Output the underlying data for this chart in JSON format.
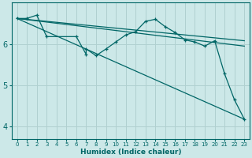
{
  "background_color": "#cce8e8",
  "line_color": "#006666",
  "grid_color": "#b0d0d0",
  "xlabel": "Humidex (Indice chaleur)",
  "xlim": [
    -0.5,
    23.5
  ],
  "ylim": [
    3.7,
    7.0
  ],
  "yticks": [
    4,
    5,
    6
  ],
  "xticks": [
    0,
    1,
    2,
    3,
    4,
    5,
    6,
    7,
    8,
    9,
    10,
    11,
    12,
    13,
    14,
    15,
    16,
    17,
    18,
    19,
    20,
    21,
    22,
    23
  ],
  "line1_x": [
    0,
    1,
    2,
    3,
    6,
    7,
    7,
    8,
    9,
    10,
    11,
    12,
    13,
    14,
    15,
    16,
    17,
    18,
    19,
    20,
    21,
    22,
    23
  ],
  "line1_y": [
    6.62,
    6.62,
    6.7,
    6.18,
    6.18,
    5.75,
    5.88,
    5.72,
    5.88,
    6.05,
    6.22,
    6.3,
    6.55,
    6.6,
    6.42,
    6.28,
    6.1,
    6.05,
    5.95,
    6.08,
    5.28,
    4.65,
    4.18
  ],
  "line2_x": [
    0,
    23
  ],
  "line2_y": [
    6.62,
    6.08
  ],
  "line3_x": [
    0,
    23
  ],
  "line3_y": [
    6.62,
    4.18
  ],
  "line4_x": [
    0,
    23
  ],
  "line4_y": [
    6.62,
    5.95
  ]
}
